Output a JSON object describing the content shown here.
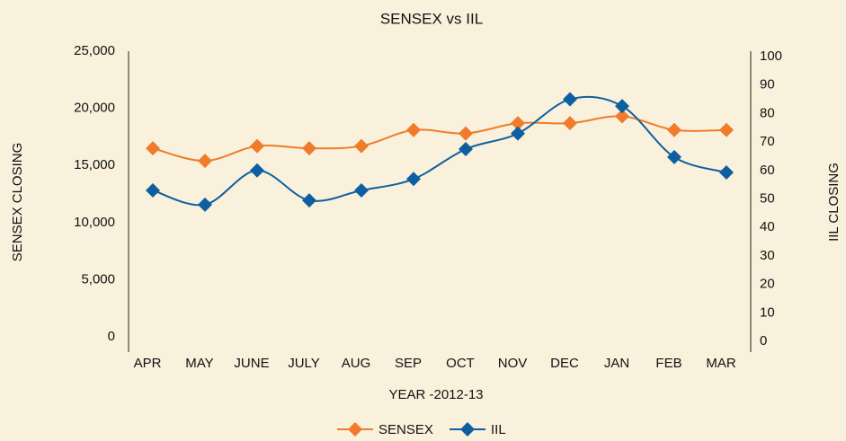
{
  "chart_data": {
    "type": "line",
    "title": "SENSEX vs IIL",
    "x_label": "YEAR -2012-13",
    "y_label": "SENSEX  CLOSING",
    "y2_label": "IIL CLOSING",
    "categories": [
      "APR",
      "MAY",
      "JUNE",
      "JULY",
      "AUG",
      "SEP",
      "OCT",
      "NOV",
      "DEC",
      "JAN",
      "FEB",
      "MAR"
    ],
    "series": [
      {
        "name": "SENSEX",
        "color": "#f07b2a",
        "values": [
          16500,
          15400,
          16700,
          16500,
          16700,
          18100,
          17800,
          18700,
          18700,
          19300,
          18100,
          18100
        ]
      },
      {
        "name": "IIL",
        "color": "#0e5fa0",
        "axis": "y2",
        "values": [
          53,
          48,
          60,
          49.5,
          53,
          57,
          67.5,
          73,
          85,
          82.6,
          64.7,
          59.3
        ]
      }
    ],
    "ylim": [
      0,
      25000
    ],
    "yticks": [
      0,
      {
        "value": 5000,
        "label": "5,000"
      },
      {
        "value": 10000,
        "label": "10,000"
      },
      {
        "value": 15000,
        "label": "15,000"
      },
      {
        "value": 20000,
        "label": "20,000"
      },
      {
        "value": 25000,
        "label": "25,000"
      }
    ],
    "y2lim": [
      0,
      100
    ],
    "y2ticks": [
      0,
      10,
      20,
      30,
      40,
      50,
      60,
      70,
      80,
      90,
      100
    ],
    "legend": "bottom"
  }
}
